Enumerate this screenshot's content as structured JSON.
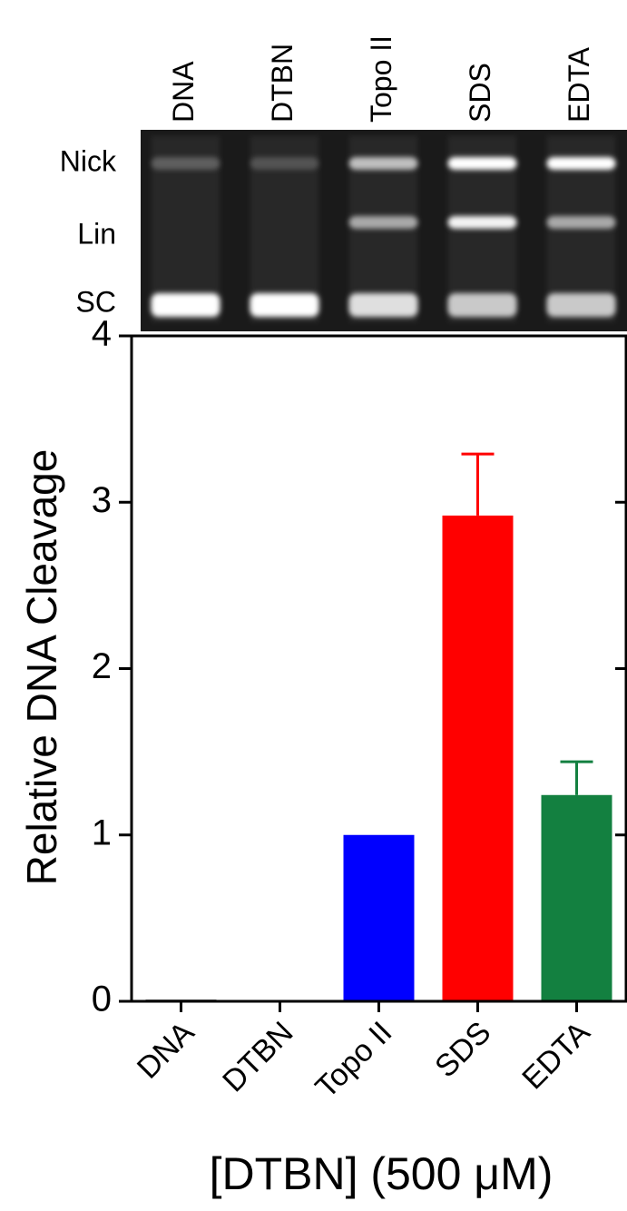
{
  "gel": {
    "lanes": [
      "DNA",
      "DTBN",
      "Topo II",
      "SDS",
      "EDTA"
    ],
    "bands": [
      "Nick",
      "Lin",
      "SC"
    ]
  },
  "chart_data": {
    "type": "bar",
    "y_label": "Relative DNA Cleavage",
    "x_label": "[DTBN] (500 μM)",
    "categories": [
      "DNA",
      "DTBN",
      "Topo II",
      "SDS",
      "EDTA"
    ],
    "values": [
      0.01,
      0.005,
      1,
      2.92,
      1.24
    ],
    "errors": [
      null,
      null,
      null,
      0.37,
      0.2
    ],
    "colors": [
      "#333333",
      "#d2873c",
      "#0000ff",
      "#ff0000",
      "#138040"
    ],
    "ylim": [
      0,
      4
    ],
    "yticks": [
      0,
      1,
      2,
      3,
      4
    ]
  }
}
